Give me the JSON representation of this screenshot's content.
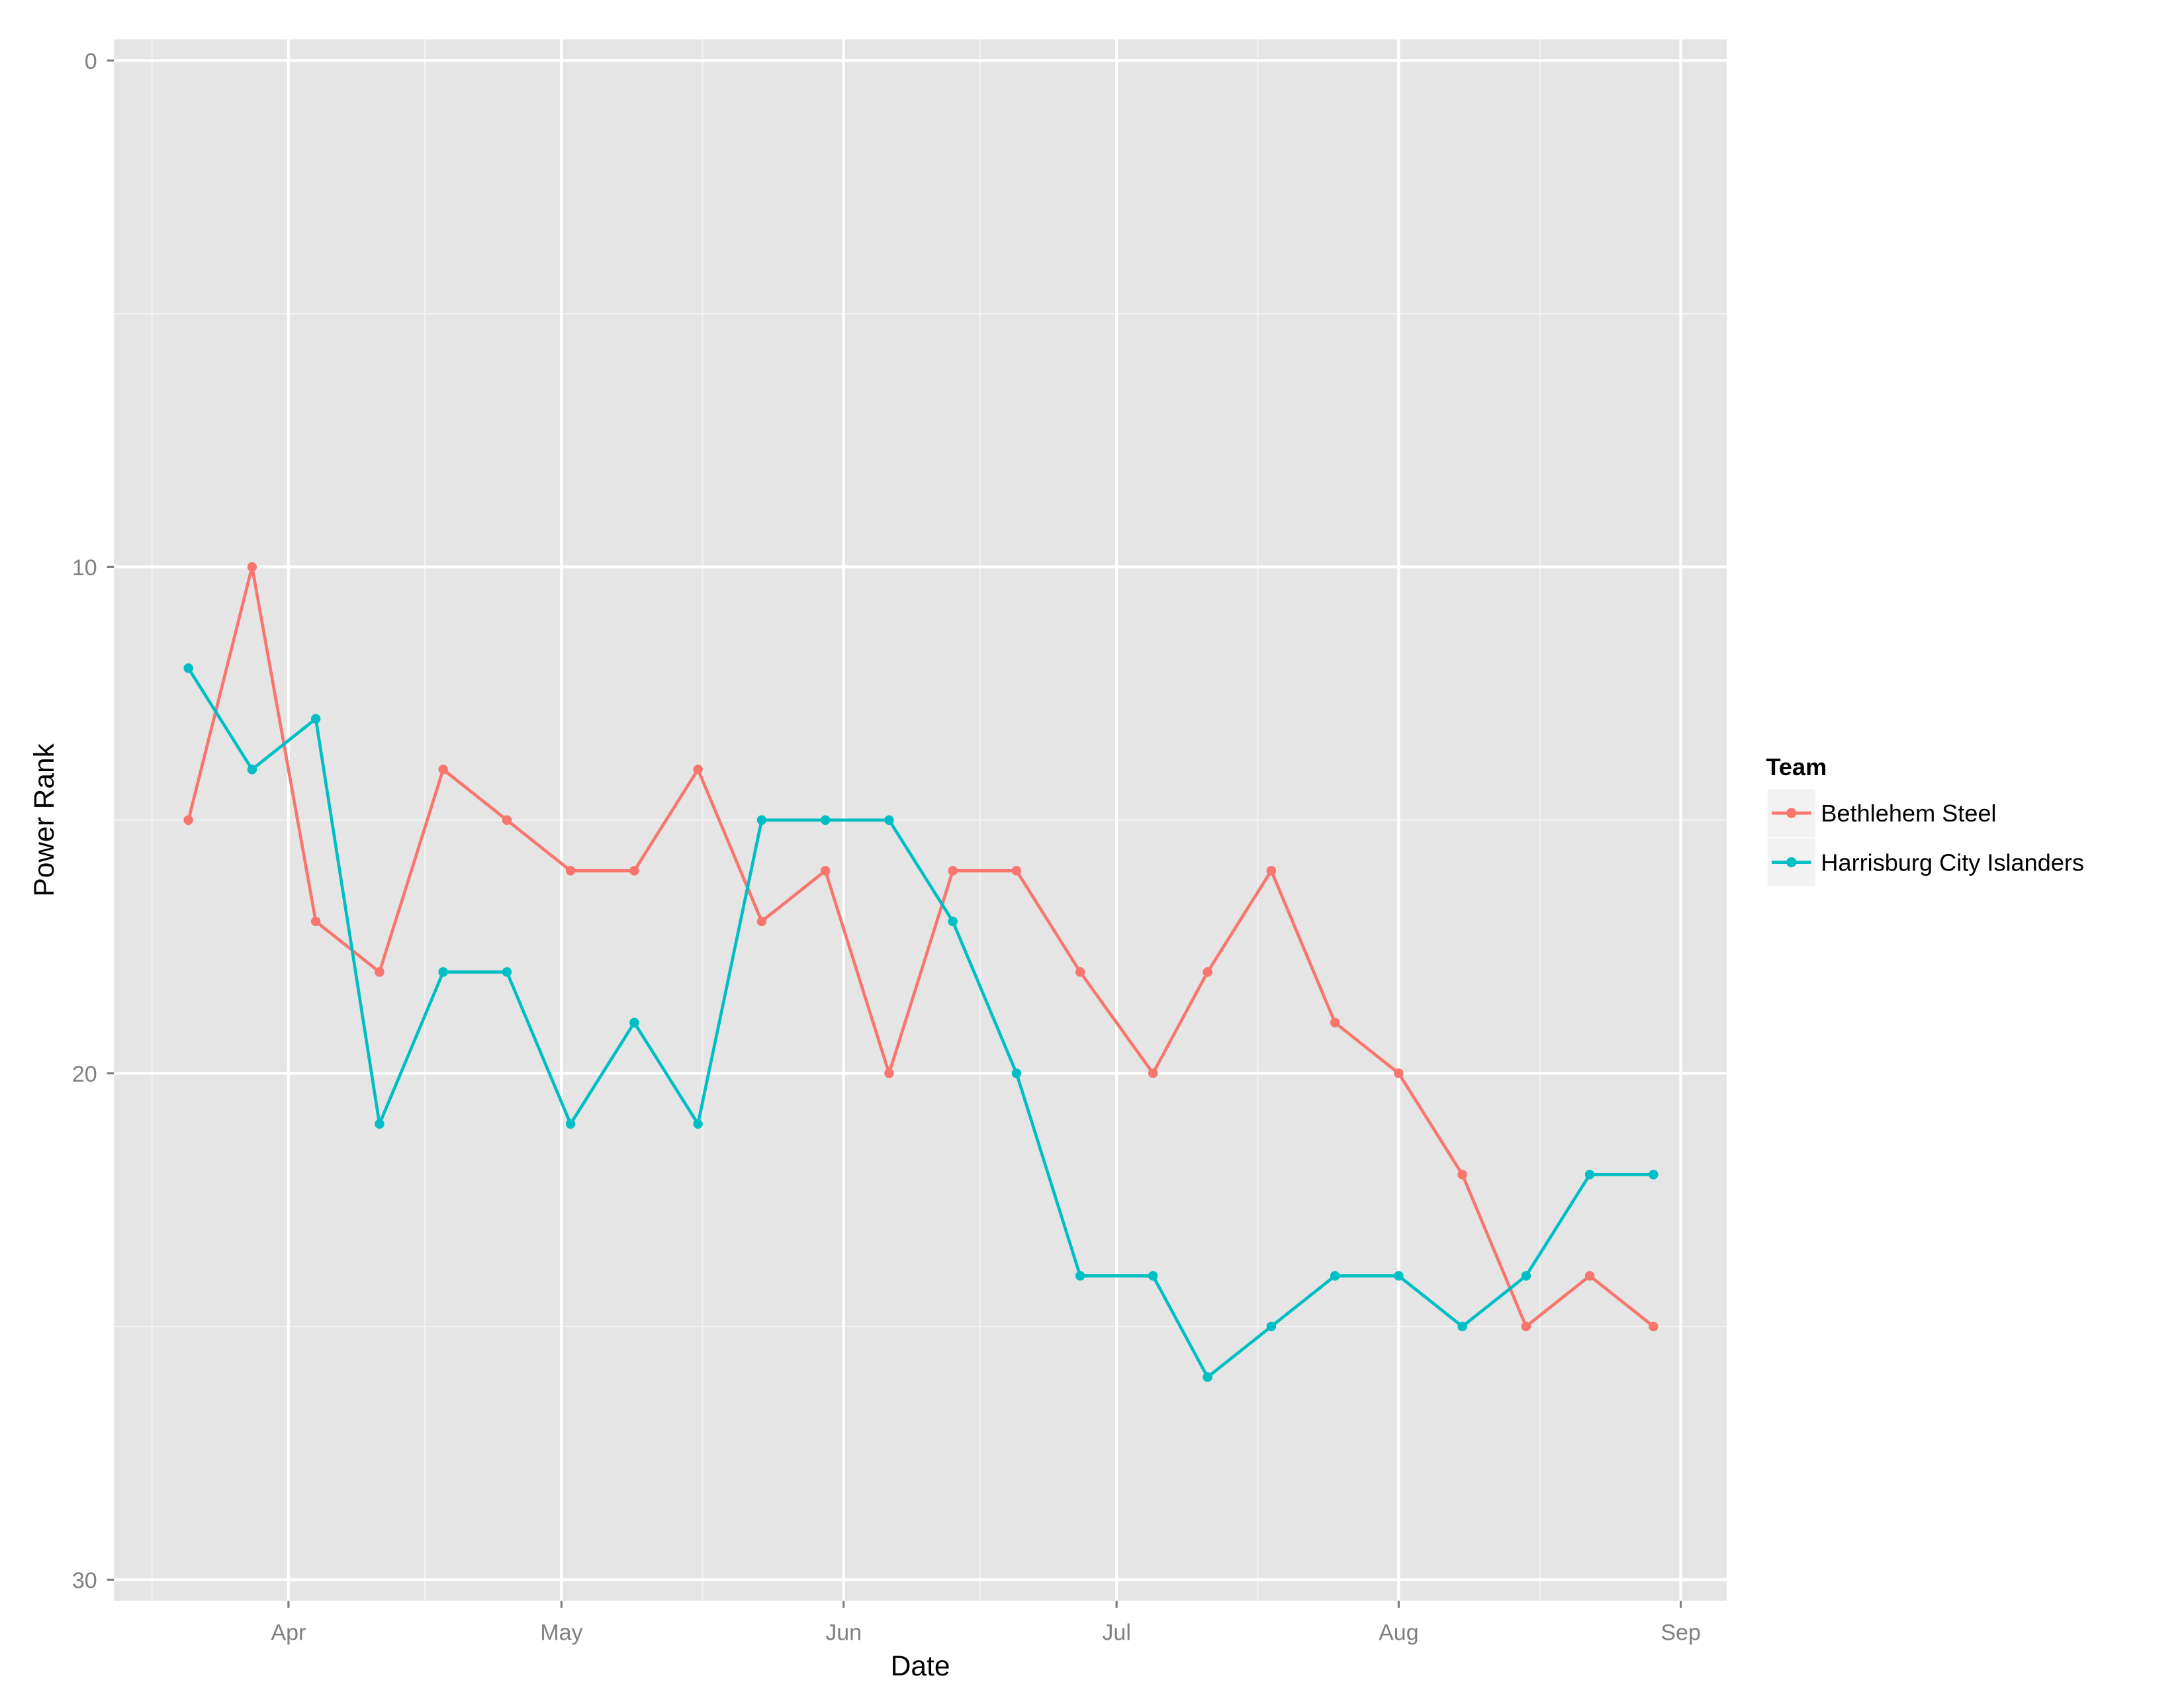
{
  "chart_data": {
    "type": "line",
    "title": "",
    "xlabel": "Date",
    "ylabel": "Power Rank",
    "y_reversed": true,
    "ylim": [
      30,
      0
    ],
    "y_ticks": [
      0,
      10,
      20,
      30
    ],
    "x_ticks": [
      "Apr",
      "May",
      "Jun",
      "Jul",
      "Aug",
      "Sep"
    ],
    "grid": true,
    "legend": {
      "title": "Team",
      "position": "right"
    },
    "x": [
      "Mar 21",
      "Mar 28",
      "Apr 4",
      "Apr 11",
      "Apr 18",
      "Apr 25",
      "May 2",
      "May 9",
      "May 16",
      "May 23",
      "May 30",
      "Jun 6",
      "Jun 13",
      "Jun 20",
      "Jun 27",
      "Jul 5",
      "Jul 11",
      "Jul 18",
      "Jul 25",
      "Aug 1",
      "Aug 8",
      "Aug 15",
      "Aug 22",
      "Aug 29"
    ],
    "x_days_from_apr1": [
      -11,
      -4,
      3,
      10,
      17,
      24,
      31,
      38,
      45,
      52,
      59,
      66,
      73,
      80,
      87,
      95,
      101,
      108,
      115,
      122,
      129,
      136,
      143,
      150
    ],
    "series": [
      {
        "name": "Bethlehem Steel",
        "color": "#F8766D",
        "values": [
          15,
          10,
          17,
          18,
          14,
          15,
          16,
          16,
          14,
          17,
          16,
          20,
          16,
          16,
          18,
          20,
          18,
          16,
          19,
          20,
          22,
          25,
          24,
          25
        ]
      },
      {
        "name": "Harrisburg City Islanders",
        "color": "#00BFC4",
        "values": [
          12,
          14,
          13,
          21,
          18,
          18,
          21,
          19,
          21,
          15,
          15,
          15,
          17,
          20,
          24,
          24,
          26,
          25,
          24,
          24,
          25,
          24,
          22,
          22
        ]
      }
    ]
  },
  "axes": {
    "x_title": "Date",
    "y_title": "Power Rank",
    "y_tick_labels": [
      "0",
      "10",
      "20",
      "30"
    ],
    "x_tick_labels": [
      "Apr",
      "May",
      "Jun",
      "Jul",
      "Aug",
      "Sep"
    ]
  },
  "legend": {
    "title": "Team",
    "items": [
      {
        "label": "Bethlehem Steel",
        "color": "#F8766D"
      },
      {
        "label": "Harrisburg City Islanders",
        "color": "#00BFC4"
      }
    ]
  },
  "colors": {
    "panel_background": "#E5E5E5",
    "grid_major": "#FFFFFF",
    "grid_minor": "#F2F2F2",
    "tick_text": "#7F7F7F",
    "legend_key_background": "#F2F2F2"
  }
}
